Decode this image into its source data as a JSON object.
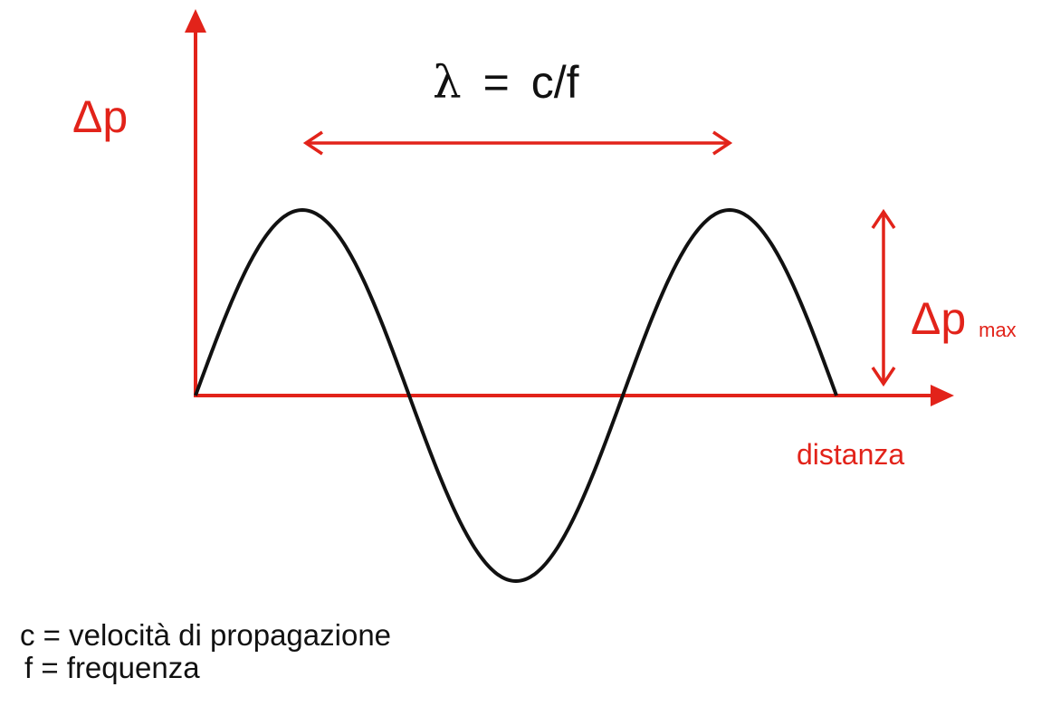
{
  "formula": {
    "lambda": "λ",
    "equals": "=",
    "rhs": "c/f"
  },
  "axes": {
    "y_label": "Δp",
    "x_label": "distanza"
  },
  "amplitude": {
    "symbol": "Δp",
    "subscript": "max"
  },
  "legend": {
    "c": "c = velocità di propagazione",
    "f": "f = frequenza"
  },
  "colors": {
    "accent": "#e2231a",
    "wave": "#111111",
    "background": "#ffffff"
  }
}
